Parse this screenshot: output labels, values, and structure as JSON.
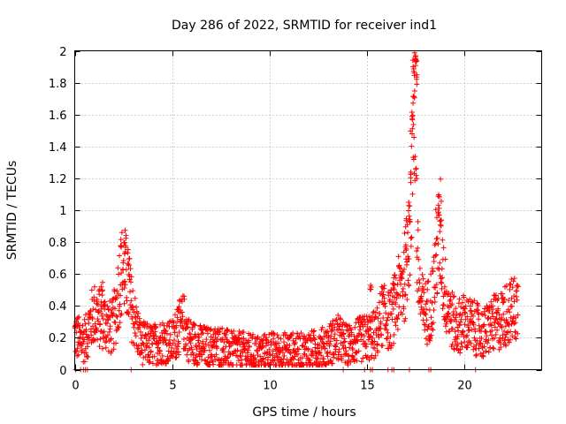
{
  "chart_data": {
    "type": "scatter",
    "title": "Day 286 of 2022, SRMTID for receiver ind1",
    "xlabel": "GPS time / hours",
    "ylabel": "SRMTID / TECUs",
    "xlim": [
      0,
      24
    ],
    "ylim": [
      0,
      2
    ],
    "xticks": [
      0,
      5,
      10,
      15,
      20
    ],
    "yticks": [
      0,
      0.2,
      0.4,
      0.6,
      0.8,
      1,
      1.2,
      1.4,
      1.6,
      1.8,
      2
    ],
    "grid": true,
    "marker": "plus",
    "color": "#ff0000",
    "series": [
      {
        "name": "ind1",
        "profile": [
          [
            0.0,
            0.22
          ],
          [
            0.3,
            0.18
          ],
          [
            0.6,
            0.2
          ],
          [
            0.8,
            0.3
          ],
          [
            1.0,
            0.35
          ],
          [
            1.3,
            0.32
          ],
          [
            1.6,
            0.3
          ],
          [
            1.9,
            0.25
          ],
          [
            2.1,
            0.35
          ],
          [
            2.3,
            0.55
          ],
          [
            2.5,
            0.65
          ],
          [
            2.7,
            0.55
          ],
          [
            2.9,
            0.4
          ],
          [
            3.1,
            0.3
          ],
          [
            3.4,
            0.17
          ],
          [
            4.0,
            0.15
          ],
          [
            4.5,
            0.18
          ],
          [
            5.0,
            0.17
          ],
          [
            5.3,
            0.25
          ],
          [
            5.6,
            0.3
          ],
          [
            5.9,
            0.18
          ],
          [
            6.5,
            0.15
          ],
          [
            7.0,
            0.14
          ],
          [
            7.5,
            0.15
          ],
          [
            8.0,
            0.12
          ],
          [
            8.5,
            0.12
          ],
          [
            9.0,
            0.11
          ],
          [
            9.5,
            0.1
          ],
          [
            10.0,
            0.12
          ],
          [
            10.5,
            0.11
          ],
          [
            11.0,
            0.12
          ],
          [
            11.5,
            0.11
          ],
          [
            12.0,
            0.12
          ],
          [
            12.5,
            0.13
          ],
          [
            13.0,
            0.15
          ],
          [
            13.5,
            0.2
          ],
          [
            14.0,
            0.15
          ],
          [
            14.5,
            0.18
          ],
          [
            15.0,
            0.2
          ],
          [
            15.5,
            0.22
          ],
          [
            15.8,
            0.35
          ],
          [
            16.2,
            0.3
          ],
          [
            16.6,
            0.45
          ],
          [
            17.0,
            0.6
          ],
          [
            17.2,
            0.9
          ],
          [
            17.4,
            1.5
          ],
          [
            17.5,
            1.8
          ],
          [
            17.6,
            0.7
          ],
          [
            17.8,
            0.4
          ],
          [
            18.1,
            0.35
          ],
          [
            18.4,
            0.45
          ],
          [
            18.6,
            0.75
          ],
          [
            18.8,
            0.85
          ],
          [
            19.0,
            0.5
          ],
          [
            19.3,
            0.35
          ],
          [
            19.6,
            0.25
          ],
          [
            19.9,
            0.3
          ],
          [
            20.3,
            0.28
          ],
          [
            20.7,
            0.25
          ],
          [
            21.0,
            0.22
          ],
          [
            21.4,
            0.28
          ],
          [
            21.8,
            0.3
          ],
          [
            22.2,
            0.35
          ],
          [
            22.6,
            0.38
          ],
          [
            22.8,
            0.4
          ]
        ],
        "spread": 0.08,
        "peaks": [
          {
            "x": 2.4,
            "y": 0.8
          },
          {
            "x": 2.6,
            "y": 0.78
          },
          {
            "x": 2.8,
            "y": 0.71
          },
          {
            "x": 17.3,
            "y": 1.25
          },
          {
            "x": 17.35,
            "y": 1.6
          },
          {
            "x": 17.4,
            "y": 1.72
          },
          {
            "x": 17.45,
            "y": 1.9
          },
          {
            "x": 17.5,
            "y": 2.0
          },
          {
            "x": 17.55,
            "y": 1.95
          },
          {
            "x": 17.6,
            "y": 1.85
          },
          {
            "x": 17.2,
            "y": 1.05
          },
          {
            "x": 18.7,
            "y": 1.03
          },
          {
            "x": 18.8,
            "y": 0.95
          },
          {
            "x": 15.2,
            "y": 0.55
          },
          {
            "x": 5.3,
            "y": 0.38
          },
          {
            "x": 1.4,
            "y": 0.55
          },
          {
            "x": 16.4,
            "y": 0.55
          },
          {
            "x": 17.0,
            "y": 0.8
          }
        ],
        "zeros": [
          0.05,
          0.3,
          0.45,
          0.55,
          0.65,
          2.9,
          13.8,
          14.9,
          15.2,
          15.3,
          16.1,
          16.3,
          16.4,
          17.2,
          18.2,
          18.3,
          20.6
        ]
      }
    ]
  }
}
